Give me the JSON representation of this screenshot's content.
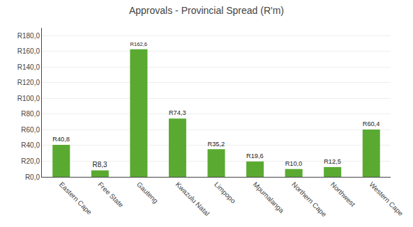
{
  "chart_data": {
    "type": "bar",
    "title": "Approvals - Provincial Spread (R'm)",
    "categories": [
      "Eastern Cape",
      "Free State",
      "Gauteng",
      "Kwazulu Natal",
      "Limpopo",
      "Mpumalanga",
      "Northern Cape",
      "Northwest",
      "Western Cape"
    ],
    "values": [
      40.8,
      8.3,
      162.6,
      74.3,
      35.2,
      19.6,
      10.0,
      12.5,
      60.4
    ],
    "value_labels": [
      "R40,8",
      "R8,3",
      "R162,6",
      "R74,3",
      "R35,2",
      "R19,6",
      "R10,0",
      "R12,5",
      "R60,4"
    ],
    "color": "#5aaa32",
    "ylim": [
      0,
      190
    ],
    "yticks": [
      {
        "value": 0,
        "label": "R0,0"
      },
      {
        "value": 20,
        "label": "R20,0"
      },
      {
        "value": 40,
        "label": "R40,0"
      },
      {
        "value": 60,
        "label": "R60,0"
      },
      {
        "value": 80,
        "label": "R80,0"
      },
      {
        "value": 100,
        "label": "R100,0"
      },
      {
        "value": 120,
        "label": "R120,0"
      },
      {
        "value": 140,
        "label": "R140,0"
      },
      {
        "value": 160,
        "label": "R160,0"
      },
      {
        "value": 180,
        "label": "R180,0"
      }
    ],
    "grid": true,
    "data_labels": true
  }
}
